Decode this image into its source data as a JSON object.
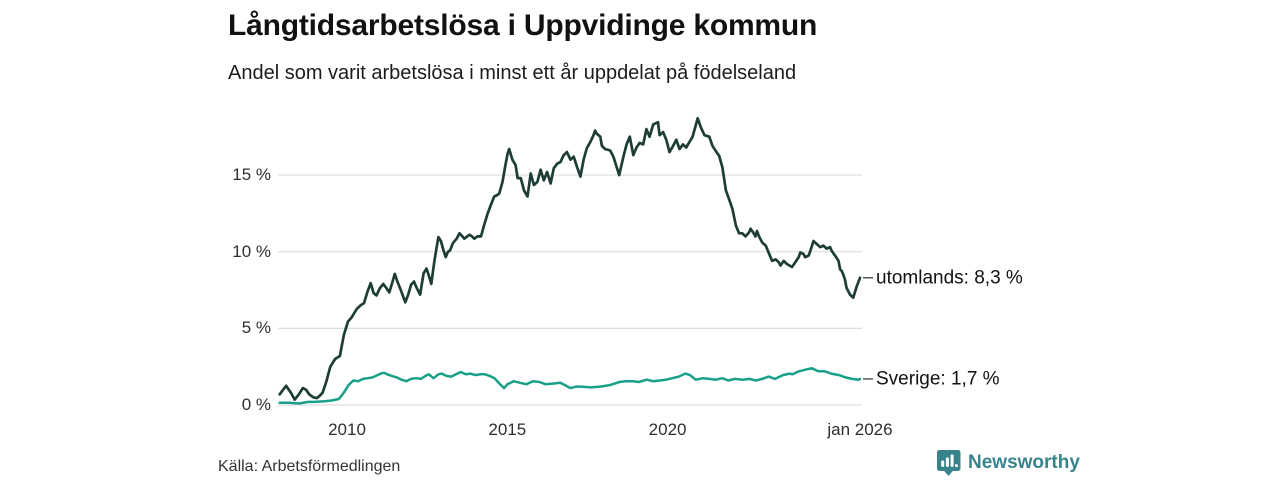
{
  "header": {
    "title": "Långtidsarbetslösa i Uppvidinge kommun",
    "subtitle": "Andel som varit arbetslösa i minst ett år uppdelat på födelseland"
  },
  "footer": {
    "source": "Källa: Arbetsförmedlingen",
    "brand_name": "Newsworthy"
  },
  "colors": {
    "series_utomlands": "#1e3d36",
    "series_sverige": "#18a088",
    "grid": "#dedede",
    "end_tick": "#555555",
    "brand_teal": "#38838c",
    "background": "#ffffff"
  },
  "chart_data": {
    "type": "line",
    "title": "Långtidsarbetslösa i Uppvidinge kommun",
    "subtitle": "Andel som varit arbetslösa i minst ett år uppdelat på födelseland",
    "xlabel": "",
    "ylabel": "",
    "grid": "horizontal",
    "ylim": [
      0,
      19
    ],
    "xlim": [
      2007.9,
      2026.08
    ],
    "y_axis": {
      "ticks": [
        {
          "label": "0 %",
          "value": 0
        },
        {
          "label": "5 %",
          "value": 5
        },
        {
          "label": "10 %",
          "value": 10
        },
        {
          "label": "15 %",
          "value": 15
        }
      ]
    },
    "x_axis": {
      "ticks": [
        {
          "label": "2010",
          "year": 2010
        },
        {
          "label": "2015",
          "year": 2015
        },
        {
          "label": "2020",
          "year": 2020
        },
        {
          "label": "jan 2026",
          "year": 2026
        }
      ]
    },
    "series": [
      {
        "name": "utomlands",
        "end_label": "utomlands: 8,3 %",
        "end_value": 8.3,
        "color": "#1e3d36",
        "points": [
          [
            2007.9,
            0.7
          ],
          [
            2008.1,
            1.25
          ],
          [
            2008.25,
            0.8
          ],
          [
            2008.37,
            0.35
          ],
          [
            2008.5,
            0.7
          ],
          [
            2008.62,
            1.1
          ],
          [
            2008.72,
            1.0
          ],
          [
            2008.82,
            0.7
          ],
          [
            2008.95,
            0.5
          ],
          [
            2009.06,
            0.45
          ],
          [
            2009.15,
            0.6
          ],
          [
            2009.24,
            0.8
          ],
          [
            2009.35,
            1.5
          ],
          [
            2009.48,
            2.5
          ],
          [
            2009.63,
            3.0
          ],
          [
            2009.78,
            3.2
          ],
          [
            2009.9,
            4.55
          ],
          [
            2010.03,
            5.45
          ],
          [
            2010.14,
            5.7
          ],
          [
            2010.3,
            6.25
          ],
          [
            2010.42,
            6.5
          ],
          [
            2010.53,
            6.65
          ],
          [
            2010.64,
            7.4
          ],
          [
            2010.74,
            7.95
          ],
          [
            2010.83,
            7.3
          ],
          [
            2010.92,
            7.15
          ],
          [
            2011.02,
            7.6
          ],
          [
            2011.13,
            7.9
          ],
          [
            2011.22,
            7.65
          ],
          [
            2011.32,
            7.35
          ],
          [
            2011.4,
            7.9
          ],
          [
            2011.49,
            8.55
          ],
          [
            2011.58,
            8.0
          ],
          [
            2011.67,
            7.55
          ],
          [
            2011.73,
            7.2
          ],
          [
            2011.82,
            6.7
          ],
          [
            2011.91,
            7.2
          ],
          [
            2012.0,
            7.85
          ],
          [
            2012.09,
            8.05
          ],
          [
            2012.17,
            7.65
          ],
          [
            2012.28,
            7.2
          ],
          [
            2012.39,
            8.6
          ],
          [
            2012.48,
            8.9
          ],
          [
            2012.55,
            8.45
          ],
          [
            2012.63,
            7.9
          ],
          [
            2012.72,
            9.3
          ],
          [
            2012.8,
            10.35
          ],
          [
            2012.85,
            10.95
          ],
          [
            2012.93,
            10.7
          ],
          [
            2013.0,
            10.15
          ],
          [
            2013.08,
            9.65
          ],
          [
            2013.15,
            10.0
          ],
          [
            2013.22,
            10.1
          ],
          [
            2013.3,
            10.55
          ],
          [
            2013.42,
            10.85
          ],
          [
            2013.51,
            11.2
          ],
          [
            2013.6,
            11.0
          ],
          [
            2013.66,
            10.85
          ],
          [
            2013.75,
            11.0
          ],
          [
            2013.82,
            11.1
          ],
          [
            2013.9,
            11.0
          ],
          [
            2013.97,
            10.85
          ],
          [
            2014.07,
            11.0
          ],
          [
            2014.18,
            11.0
          ],
          [
            2014.28,
            11.75
          ],
          [
            2014.39,
            12.5
          ],
          [
            2014.49,
            13.05
          ],
          [
            2014.59,
            13.6
          ],
          [
            2014.69,
            13.7
          ],
          [
            2014.75,
            13.8
          ],
          [
            2014.85,
            14.55
          ],
          [
            2014.95,
            15.75
          ],
          [
            2015.01,
            16.4
          ],
          [
            2015.06,
            16.7
          ],
          [
            2015.16,
            16.0
          ],
          [
            2015.26,
            15.65
          ],
          [
            2015.32,
            14.8
          ],
          [
            2015.42,
            14.8
          ],
          [
            2015.52,
            14.0
          ],
          [
            2015.63,
            13.6
          ],
          [
            2015.73,
            15.1
          ],
          [
            2015.83,
            14.35
          ],
          [
            2015.94,
            14.55
          ],
          [
            2016.04,
            15.35
          ],
          [
            2016.14,
            14.65
          ],
          [
            2016.24,
            15.2
          ],
          [
            2016.35,
            14.45
          ],
          [
            2016.45,
            15.45
          ],
          [
            2016.56,
            15.75
          ],
          [
            2016.66,
            15.85
          ],
          [
            2016.76,
            16.3
          ],
          [
            2016.86,
            16.5
          ],
          [
            2016.97,
            16.0
          ],
          [
            2017.07,
            16.2
          ],
          [
            2017.17,
            15.55
          ],
          [
            2017.28,
            14.9
          ],
          [
            2017.38,
            16.0
          ],
          [
            2017.48,
            16.75
          ],
          [
            2017.59,
            17.15
          ],
          [
            2017.69,
            17.6
          ],
          [
            2017.74,
            17.9
          ],
          [
            2017.79,
            17.7
          ],
          [
            2017.9,
            17.5
          ],
          [
            2017.95,
            16.9
          ],
          [
            2018.05,
            16.7
          ],
          [
            2018.21,
            16.6
          ],
          [
            2018.31,
            16.2
          ],
          [
            2018.49,
            15.0
          ],
          [
            2018.62,
            16.2
          ],
          [
            2018.72,
            17.0
          ],
          [
            2018.82,
            17.5
          ],
          [
            2018.93,
            16.3
          ],
          [
            2019.03,
            16.8
          ],
          [
            2019.13,
            17.1
          ],
          [
            2019.24,
            17.0
          ],
          [
            2019.34,
            18.0
          ],
          [
            2019.44,
            17.5
          ],
          [
            2019.55,
            18.3
          ],
          [
            2019.7,
            18.45
          ],
          [
            2019.75,
            17.6
          ],
          [
            2019.86,
            17.8
          ],
          [
            2019.96,
            17.3
          ],
          [
            2020.06,
            16.5
          ],
          [
            2020.17,
            16.9
          ],
          [
            2020.27,
            17.3
          ],
          [
            2020.37,
            16.7
          ],
          [
            2020.48,
            17.0
          ],
          [
            2020.58,
            16.8
          ],
          [
            2020.68,
            17.15
          ],
          [
            2020.78,
            17.5
          ],
          [
            2020.94,
            18.7
          ],
          [
            2021.04,
            18.1
          ],
          [
            2021.15,
            17.6
          ],
          [
            2021.3,
            17.5
          ],
          [
            2021.4,
            16.9
          ],
          [
            2021.51,
            16.55
          ],
          [
            2021.61,
            16.25
          ],
          [
            2021.71,
            15.5
          ],
          [
            2021.82,
            14.0
          ],
          [
            2021.92,
            13.4
          ],
          [
            2022.02,
            12.8
          ],
          [
            2022.13,
            11.7
          ],
          [
            2022.23,
            11.2
          ],
          [
            2022.33,
            11.2
          ],
          [
            2022.43,
            11.0
          ],
          [
            2022.54,
            11.25
          ],
          [
            2022.59,
            11.5
          ],
          [
            2022.67,
            11.25
          ],
          [
            2022.74,
            11.0
          ],
          [
            2022.79,
            11.35
          ],
          [
            2022.85,
            11.0
          ],
          [
            2022.95,
            10.6
          ],
          [
            2023.06,
            10.4
          ],
          [
            2023.16,
            9.9
          ],
          [
            2023.26,
            9.4
          ],
          [
            2023.37,
            9.5
          ],
          [
            2023.47,
            9.3
          ],
          [
            2023.52,
            9.1
          ],
          [
            2023.62,
            9.4
          ],
          [
            2023.72,
            9.2
          ],
          [
            2023.88,
            9.0
          ],
          [
            2023.98,
            9.3
          ],
          [
            2024.09,
            9.65
          ],
          [
            2024.14,
            9.95
          ],
          [
            2024.24,
            9.85
          ],
          [
            2024.29,
            9.65
          ],
          [
            2024.4,
            9.75
          ],
          [
            2024.45,
            10.05
          ],
          [
            2024.55,
            10.7
          ],
          [
            2024.65,
            10.5
          ],
          [
            2024.76,
            10.3
          ],
          [
            2024.86,
            10.4
          ],
          [
            2024.96,
            10.2
          ],
          [
            2025.07,
            10.3
          ],
          [
            2025.12,
            10.05
          ],
          [
            2025.22,
            9.75
          ],
          [
            2025.33,
            9.4
          ],
          [
            2025.38,
            8.85
          ],
          [
            2025.43,
            8.75
          ],
          [
            2025.48,
            8.5
          ],
          [
            2025.53,
            8.2
          ],
          [
            2025.58,
            7.65
          ],
          [
            2025.69,
            7.2
          ],
          [
            2025.79,
            7.0
          ],
          [
            2025.9,
            7.75
          ],
          [
            2026.0,
            8.3
          ]
        ]
      },
      {
        "name": "Sverige",
        "end_label": "Sverige: 1,7 %",
        "end_value": 1.7,
        "color": "#18a088",
        "points": [
          [
            2007.9,
            0.15
          ],
          [
            2008.2,
            0.15
          ],
          [
            2008.5,
            0.1
          ],
          [
            2008.8,
            0.2
          ],
          [
            2009.0,
            0.2
          ],
          [
            2009.3,
            0.25
          ],
          [
            2009.55,
            0.3
          ],
          [
            2009.75,
            0.4
          ],
          [
            2009.9,
            0.8
          ],
          [
            2010.05,
            1.3
          ],
          [
            2010.2,
            1.6
          ],
          [
            2010.35,
            1.55
          ],
          [
            2010.5,
            1.7
          ],
          [
            2010.65,
            1.75
          ],
          [
            2010.8,
            1.8
          ],
          [
            2010.95,
            1.95
          ],
          [
            2011.05,
            2.05
          ],
          [
            2011.15,
            2.1
          ],
          [
            2011.25,
            2.0
          ],
          [
            2011.4,
            1.9
          ],
          [
            2011.55,
            1.8
          ],
          [
            2011.7,
            1.65
          ],
          [
            2011.85,
            1.55
          ],
          [
            2012.0,
            1.7
          ],
          [
            2012.15,
            1.75
          ],
          [
            2012.3,
            1.7
          ],
          [
            2012.45,
            1.9
          ],
          [
            2012.55,
            2.0
          ],
          [
            2012.7,
            1.75
          ],
          [
            2012.85,
            2.0
          ],
          [
            2012.95,
            2.05
          ],
          [
            2013.1,
            1.9
          ],
          [
            2013.25,
            1.85
          ],
          [
            2013.4,
            2.0
          ],
          [
            2013.55,
            2.15
          ],
          [
            2013.7,
            2.0
          ],
          [
            2013.85,
            2.05
          ],
          [
            2014.0,
            1.95
          ],
          [
            2014.15,
            2.0
          ],
          [
            2014.3,
            2.0
          ],
          [
            2014.45,
            1.9
          ],
          [
            2014.6,
            1.75
          ],
          [
            2014.75,
            1.4
          ],
          [
            2014.9,
            1.1
          ],
          [
            2015.0,
            1.35
          ],
          [
            2015.2,
            1.55
          ],
          [
            2015.4,
            1.45
          ],
          [
            2015.6,
            1.35
          ],
          [
            2015.8,
            1.55
          ],
          [
            2016.0,
            1.5
          ],
          [
            2016.2,
            1.35
          ],
          [
            2016.45,
            1.4
          ],
          [
            2016.65,
            1.45
          ],
          [
            2016.8,
            1.3
          ],
          [
            2016.97,
            1.1
          ],
          [
            2017.15,
            1.2
          ],
          [
            2017.3,
            1.2
          ],
          [
            2017.6,
            1.15
          ],
          [
            2017.9,
            1.2
          ],
          [
            2018.2,
            1.3
          ],
          [
            2018.5,
            1.5
          ],
          [
            2018.7,
            1.55
          ],
          [
            2018.9,
            1.55
          ],
          [
            2019.1,
            1.5
          ],
          [
            2019.35,
            1.65
          ],
          [
            2019.55,
            1.55
          ],
          [
            2019.75,
            1.6
          ],
          [
            2019.95,
            1.65
          ],
          [
            2020.15,
            1.75
          ],
          [
            2020.35,
            1.85
          ],
          [
            2020.55,
            2.05
          ],
          [
            2020.7,
            1.95
          ],
          [
            2020.88,
            1.65
          ],
          [
            2021.1,
            1.75
          ],
          [
            2021.3,
            1.7
          ],
          [
            2021.5,
            1.65
          ],
          [
            2021.7,
            1.75
          ],
          [
            2021.9,
            1.6
          ],
          [
            2022.1,
            1.7
          ],
          [
            2022.35,
            1.65
          ],
          [
            2022.55,
            1.7
          ],
          [
            2022.75,
            1.6
          ],
          [
            2022.95,
            1.7
          ],
          [
            2023.15,
            1.85
          ],
          [
            2023.35,
            1.7
          ],
          [
            2023.6,
            1.95
          ],
          [
            2023.8,
            2.05
          ],
          [
            2023.9,
            2.0
          ],
          [
            2024.1,
            2.2
          ],
          [
            2024.3,
            2.3
          ],
          [
            2024.5,
            2.4
          ],
          [
            2024.7,
            2.2
          ],
          [
            2024.9,
            2.2
          ],
          [
            2025.1,
            2.05
          ],
          [
            2025.35,
            1.95
          ],
          [
            2025.55,
            1.8
          ],
          [
            2025.75,
            1.7
          ],
          [
            2025.95,
            1.65
          ],
          [
            2026.0,
            1.7
          ]
        ]
      }
    ]
  }
}
